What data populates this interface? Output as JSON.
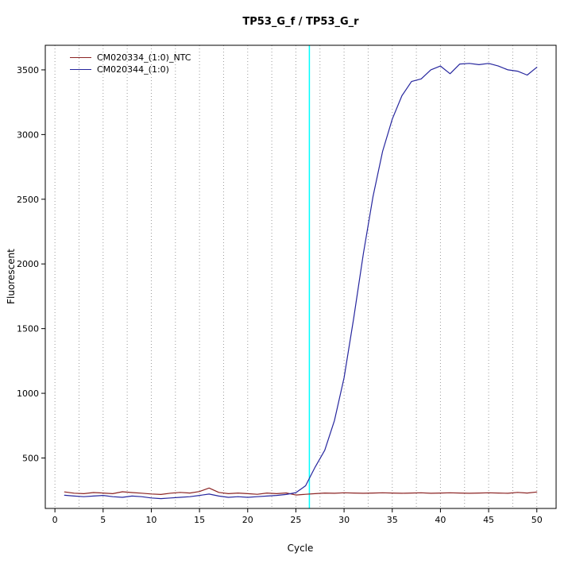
{
  "figure": {
    "background": "#ffffff"
  },
  "chart_data": {
    "type": "line",
    "title": "TP53_G_f / TP53_G_r",
    "xlabel": "Cycle",
    "ylabel": "Fluorescent",
    "xlim": [
      -1,
      52
    ],
    "ylim": [
      110,
      3690
    ],
    "x_ticks": [
      0,
      5,
      10,
      15,
      20,
      25,
      30,
      35,
      40,
      45,
      50
    ],
    "y_ticks": [
      500,
      1000,
      1500,
      2000,
      2500,
      3000,
      3500
    ],
    "grid": {
      "vertical_interval": 2.5,
      "color": "#9a9a9a",
      "style": "dotted",
      "horizontal": false
    },
    "threshold_line": {
      "x": 26.4,
      "color": "#00ffff"
    },
    "legend_position": "top-left",
    "x": [
      1,
      2,
      3,
      4,
      5,
      6,
      7,
      8,
      9,
      10,
      11,
      12,
      13,
      14,
      15,
      16,
      17,
      18,
      19,
      20,
      21,
      22,
      23,
      24,
      25,
      26,
      27,
      28,
      29,
      30,
      31,
      32,
      33,
      34,
      35,
      36,
      37,
      38,
      39,
      40,
      41,
      42,
      43,
      44,
      45,
      46,
      47,
      48,
      49,
      50
    ],
    "series": [
      {
        "name": "CM020334_(1:0)_NTC",
        "color": "#8b2323",
        "values": [
          238,
          228,
          224,
          233,
          229,
          224,
          239,
          233,
          228,
          222,
          218,
          228,
          234,
          229,
          241,
          268,
          234,
          224,
          229,
          224,
          219,
          229,
          224,
          230,
          214,
          219,
          224,
          229,
          227,
          231,
          229,
          227,
          229,
          231,
          229,
          227,
          229,
          231,
          227,
          229,
          231,
          229,
          227,
          229,
          231,
          229,
          227,
          234,
          229,
          237
        ]
      },
      {
        "name": "CM020344_(1:0)",
        "color": "#26269e",
        "values": [
          212,
          206,
          201,
          206,
          211,
          201,
          196,
          206,
          201,
          191,
          186,
          191,
          196,
          201,
          211,
          221,
          206,
          196,
          201,
          196,
          201,
          206,
          211,
          218,
          232,
          285,
          430,
          560,
          790,
          1120,
          1580,
          2080,
          2520,
          2870,
          3120,
          3300,
          3410,
          3430,
          3500,
          3530,
          3470,
          3545,
          3550,
          3540,
          3550,
          3530,
          3500,
          3490,
          3460,
          3520
        ]
      }
    ]
  }
}
